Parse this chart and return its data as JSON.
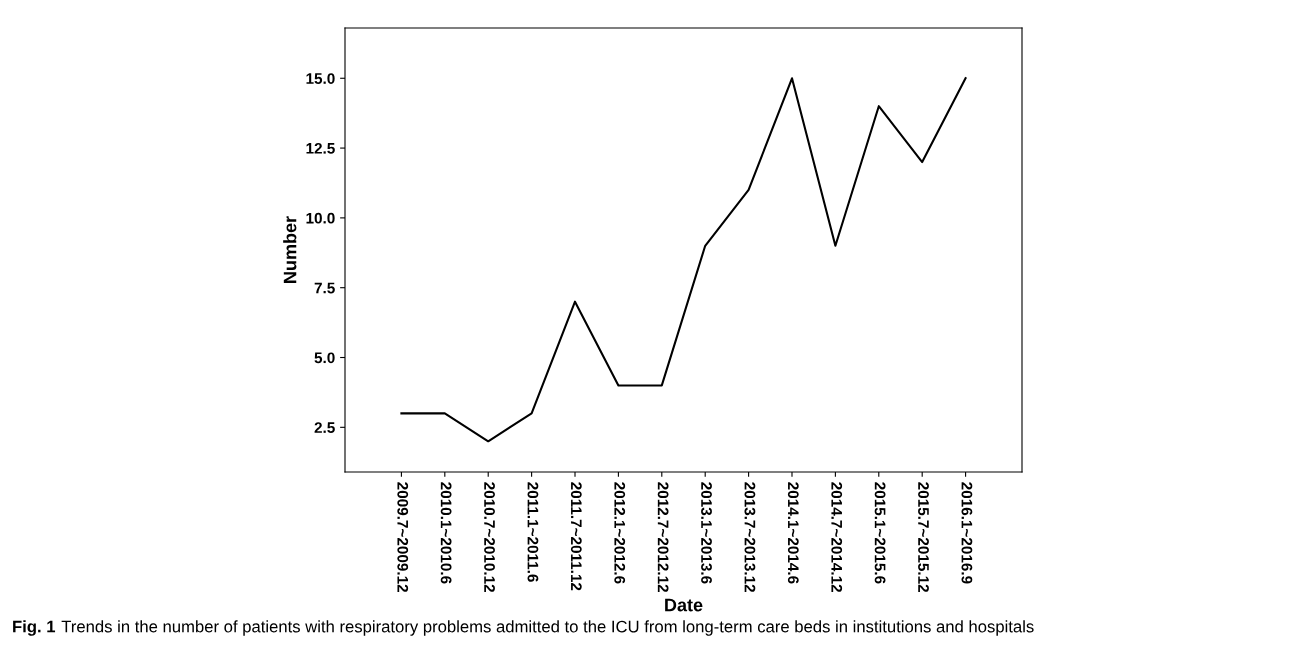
{
  "chart_data": {
    "type": "line",
    "xlabel": "Date",
    "ylabel": "Number",
    "categories": [
      "2009.7~2009.12",
      "2010.1~2010.6",
      "2010.7~2010.12",
      "2011.1~2011.6",
      "2011.7~2011.12",
      "2012.1~2012.6",
      "2012.7~2012.12",
      "2013.1~2013.6",
      "2013.7~2013.12",
      "2014.1~2014.6",
      "2014.7~2014.12",
      "2015.1~2015.6",
      "2015.7~2015.12",
      "2016.1~2016.9"
    ],
    "series": [
      {
        "color": "#000000",
        "values": [
          3,
          3,
          2,
          3,
          7,
          4,
          4,
          9,
          11,
          15,
          9,
          14,
          12,
          15
        ]
      }
    ],
    "ylim": [
      0.9,
      16.8
    ],
    "yticks": [
      {
        "value": 2.5,
        "label": "2.5"
      },
      {
        "value": 5,
        "label": "5.0"
      },
      {
        "value": 7.5,
        "label": "7.5"
      },
      {
        "value": 10,
        "label": "10.0"
      },
      {
        "value": 12.5,
        "label": "12.5"
      },
      {
        "value": 15,
        "label": "15.0"
      }
    ],
    "grid": false,
    "legend": false,
    "marker": "none",
    "line_style": "solid",
    "annotations": [
      "Fig. 1",
      "Trends in the number of patients with respiratory problems admitted to the ICU from long-term care beds in institutions and hospitals"
    ]
  }
}
